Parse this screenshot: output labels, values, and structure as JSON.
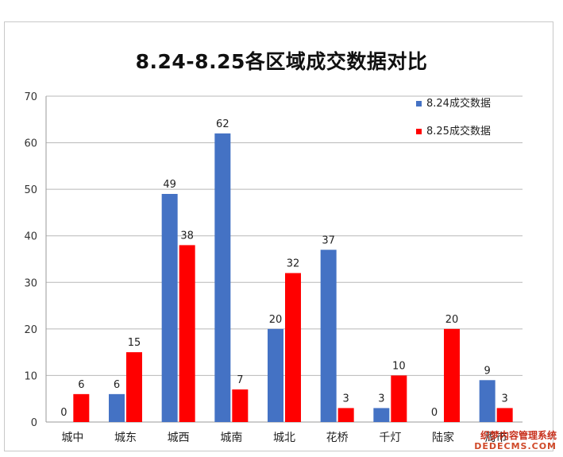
{
  "chart_data": {
    "type": "bar",
    "title": "8.24-8.25各区域成交数据对比",
    "categories": [
      "城中",
      "城东",
      "城西",
      "城南",
      "城北",
      "花桥",
      "千灯",
      "陆家",
      "周市"
    ],
    "series": [
      {
        "name": "8.24成交数据",
        "color": "#4472c4",
        "values": [
          0,
          6,
          49,
          62,
          20,
          37,
          3,
          0,
          9
        ]
      },
      {
        "name": "8.25成交数据",
        "color": "#ff0000",
        "values": [
          6,
          15,
          38,
          7,
          32,
          3,
          10,
          20,
          3
        ]
      }
    ],
    "ylim": [
      0,
      70
    ],
    "yticks": [
      0,
      10,
      20,
      30,
      40,
      50,
      60,
      70
    ],
    "grid": true,
    "legend": "top-right"
  },
  "watermark": {
    "line1": "织梦内容管理系统",
    "line2": "DEDECMS.COM"
  }
}
